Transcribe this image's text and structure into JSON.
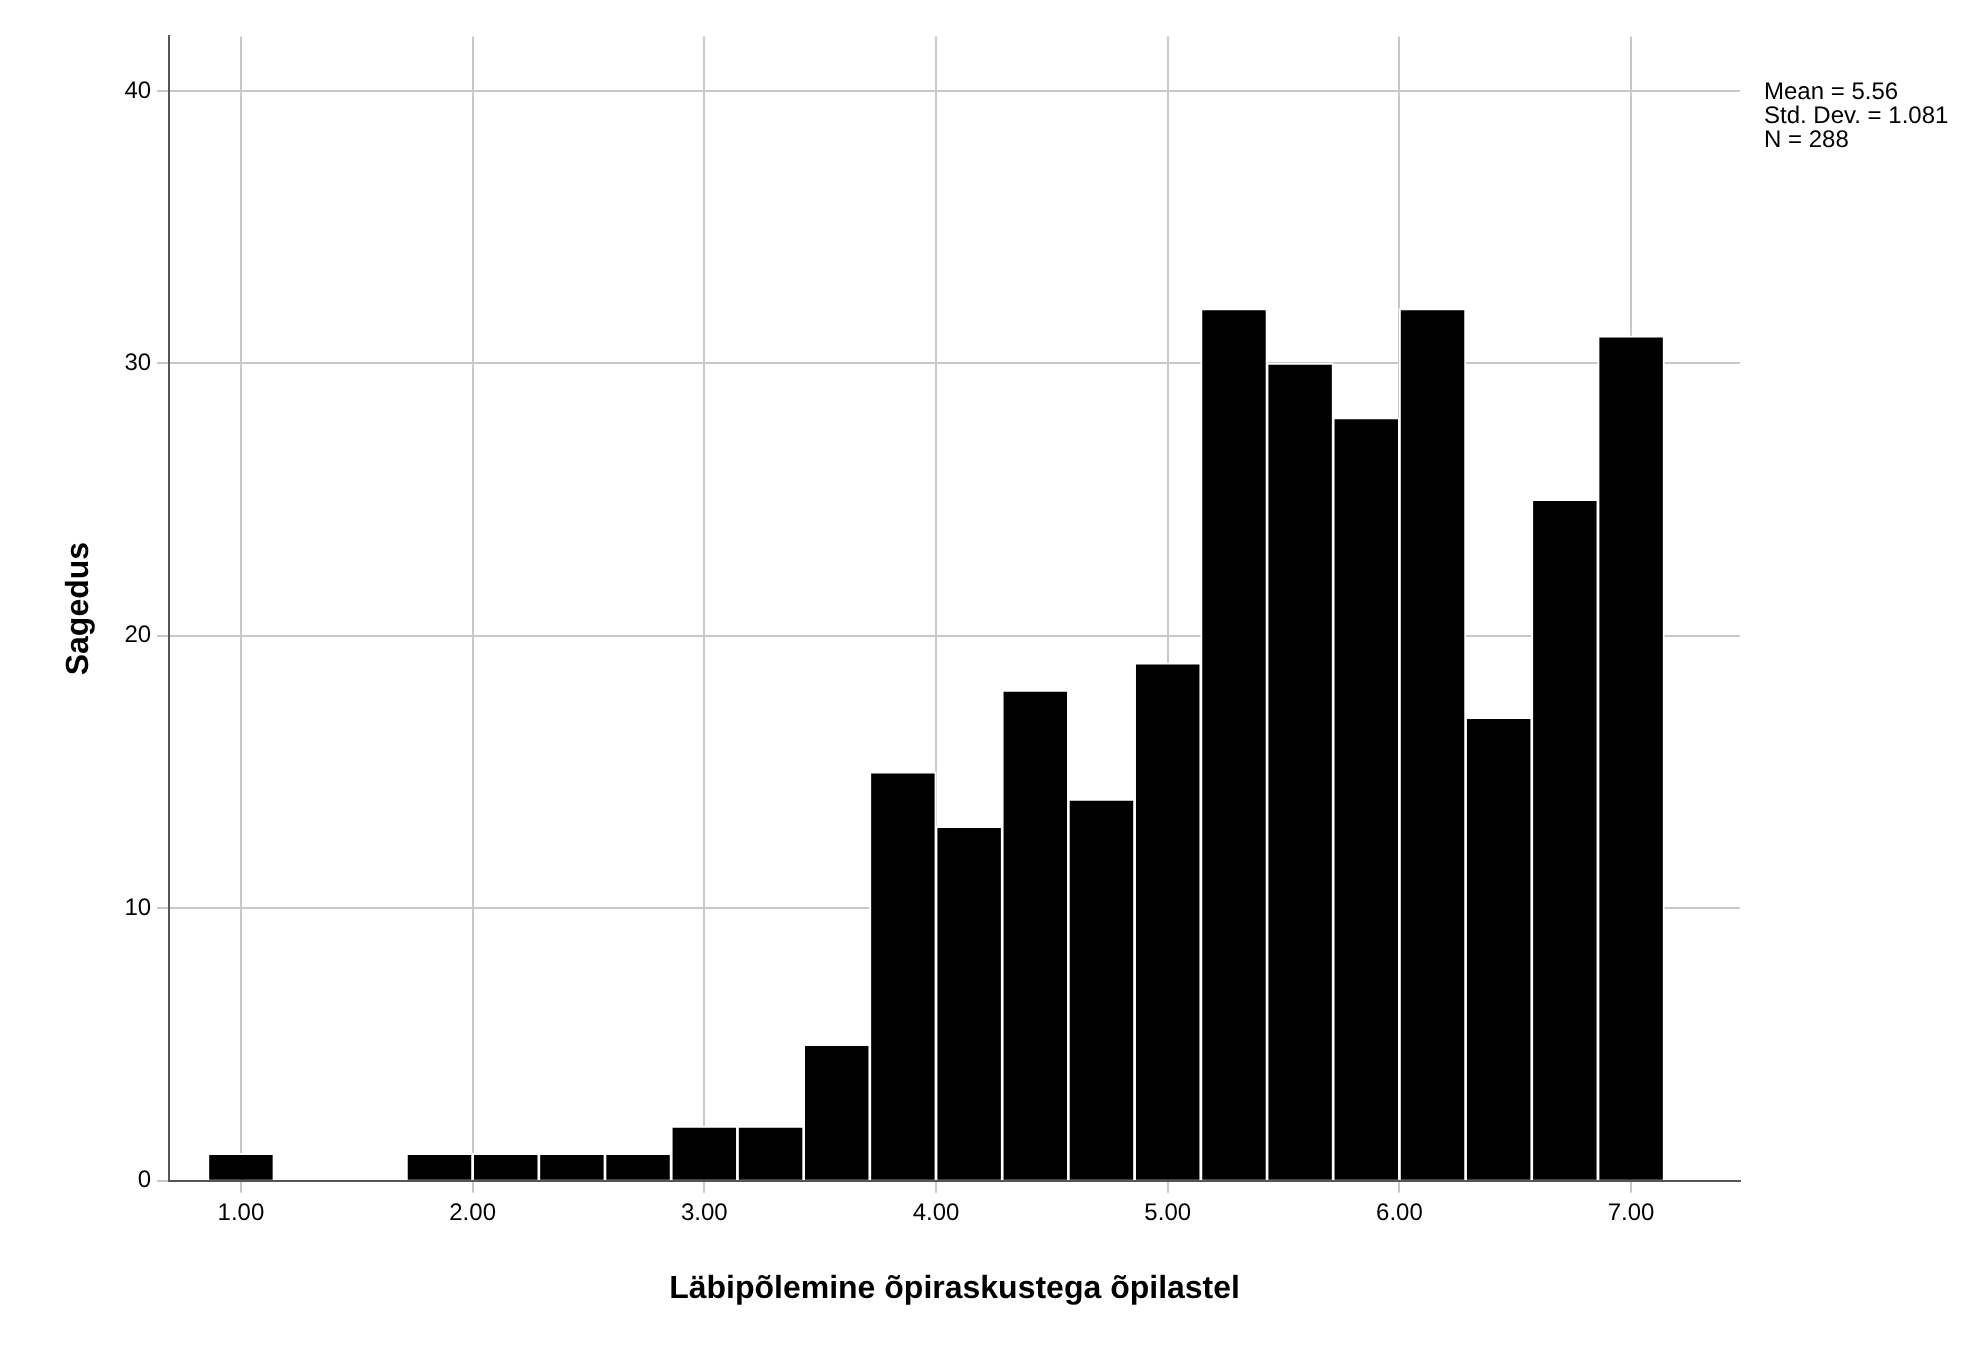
{
  "chart_data": {
    "type": "histogram",
    "xlabel": "Läbipõlemine õpiraskustega õpilastel",
    "ylabel": "Sagedus",
    "annotations": [
      "Mean = 5.56\nStd. Dev. = 1.081\nN = 288"
    ],
    "bins": [
      0.857,
      1.143,
      1.429,
      1.714,
      2.0,
      2.286,
      2.571,
      2.857,
      3.143,
      3.429,
      3.714,
      4.0,
      4.286,
      4.571,
      4.857,
      5.143,
      5.429,
      5.714,
      6.0,
      6.286,
      6.571,
      6.857,
      7.143
    ],
    "values": [
      1,
      0,
      0,
      1,
      1,
      1,
      1,
      2,
      2,
      5,
      15,
      13,
      18,
      14,
      19,
      32,
      30,
      28,
      32,
      17,
      25,
      31
    ],
    "color": "#000000",
    "xlim": [
      0.69,
      7.47
    ],
    "xticks": [
      {
        "value": 1,
        "label": "1.00"
      },
      {
        "value": 2,
        "label": "2.00"
      },
      {
        "value": 3,
        "label": "3.00"
      },
      {
        "value": 4,
        "label": "4.00"
      },
      {
        "value": 5,
        "label": "5.00"
      },
      {
        "value": 6,
        "label": "6.00"
      },
      {
        "value": 7,
        "label": "7.00"
      }
    ],
    "ylim": [
      0,
      42
    ],
    "yticks": [
      0,
      10,
      20,
      30,
      40
    ],
    "grid": true
  }
}
